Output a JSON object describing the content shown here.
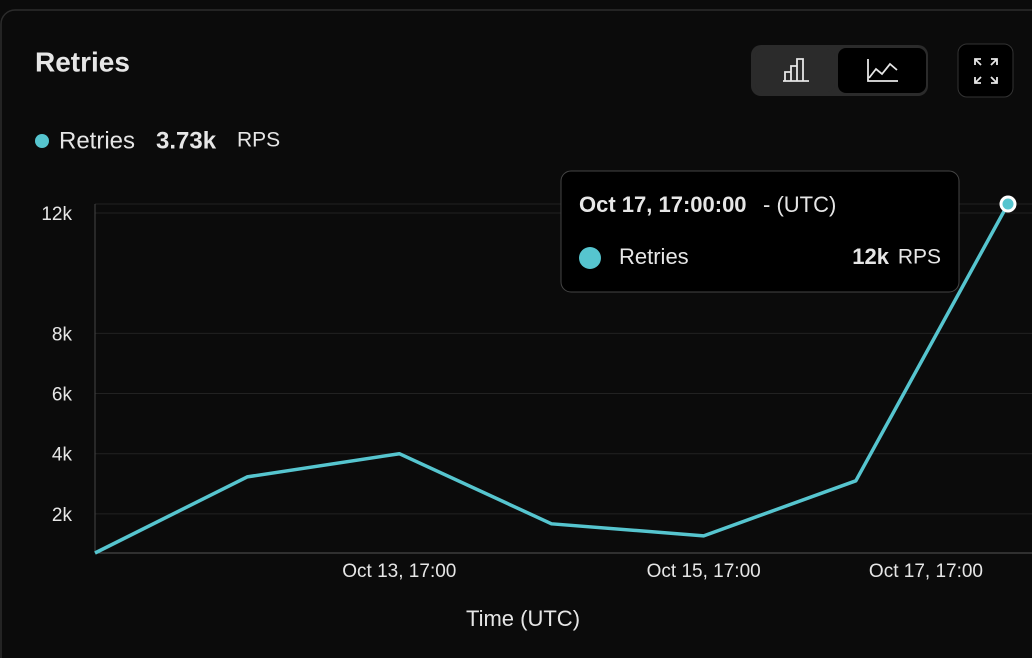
{
  "panel": {
    "title": "Retries",
    "legend": {
      "value": "3.73k",
      "unit": "RPS"
    },
    "tooltip": {
      "time": "Oct 17, 17:00:00",
      "zone": "- (UTC)",
      "value": "12k",
      "unit": "RPS"
    }
  },
  "chart_data": {
    "type": "line",
    "x_label": "Time (UTC)",
    "categories": [
      null,
      null,
      "Oct 13, 17:00",
      null,
      "Oct 15, 17:00",
      null,
      "Oct 17, 17:00"
    ],
    "series": [
      {
        "name": "Retries",
        "color": "#56c5cf",
        "values": [
          700,
          3230,
          4000,
          1670,
          1270,
          3100,
          12300
        ]
      }
    ],
    "ylim": [
      700,
      12300
    ],
    "yticks": [
      {
        "value": 2000,
        "label": "2k"
      },
      {
        "value": 4000,
        "label": "4k"
      },
      {
        "value": 6000,
        "label": "6k"
      },
      {
        "value": 8000,
        "label": "8k"
      },
      {
        "value": 12000,
        "label": "12k"
      }
    ],
    "grid": true
  }
}
